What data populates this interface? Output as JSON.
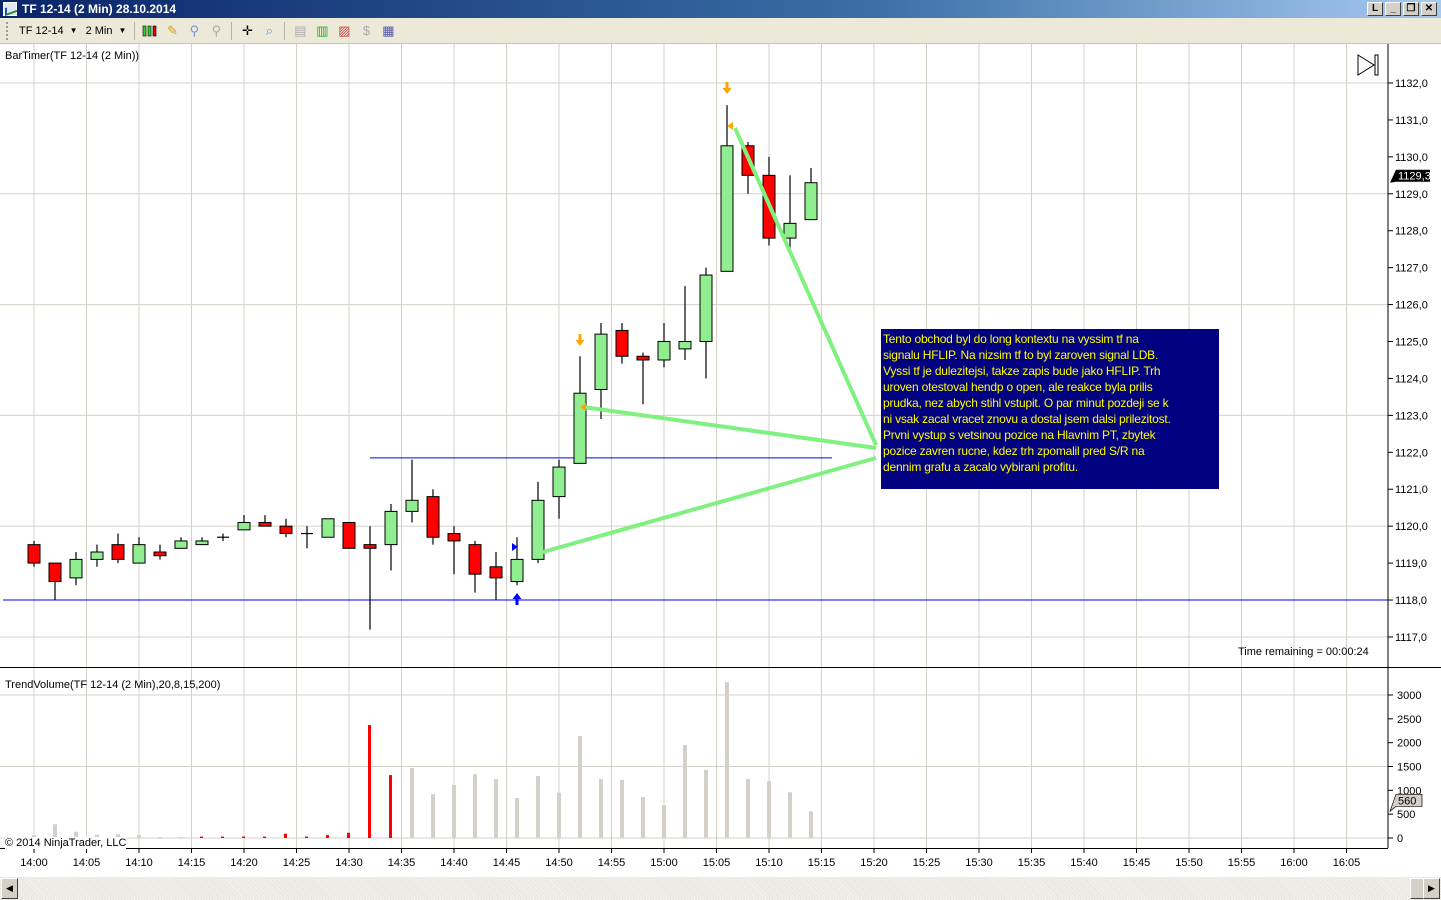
{
  "window": {
    "title": "TF 12-14 (2 Min)  28.10.2014",
    "buttons": [
      "L",
      "_",
      "❐",
      "✕"
    ]
  },
  "toolbar": {
    "instrument": "TF 12-14",
    "interval": "2 Min",
    "icons": [
      "candlestick-style-icon",
      "pencil-draw-icon",
      "zoom-in-icon",
      "zoom-out-icon",
      "crosshair-icon",
      "data-box-icon",
      "properties-icon",
      "indicators-icon",
      "strategies-icon",
      "market-analyzer-icon",
      "chart-template-icon"
    ]
  },
  "panels": {
    "price_label": "BarTimer(TF 12-14 (2 Min))",
    "volume_label": "TrendVolume(TF 12-14 (2 Min),20,8,15,200)",
    "time_remaining": "Time remaining = 00:00:24",
    "copyright": "© 2014 NinjaTrader, LLC"
  },
  "annotation": {
    "lines": [
      "Tento obchod byl do long kontextu na vyssim tf na",
      "signalu HFLIP. Na nizsim tf to byl zaroven signal LDB.",
      "Vyssi tf je dulezitejsi, takze zapis bude jako HFLIP. Trh",
      "uroven otestoval hendp o open, ale reakce byla prilis",
      "prudka, nez abych stihl vstupit. O par minut pozdeji se k",
      "ni vsak zacal vracet znovu a dostal jsem dalsi prilezitost.",
      "Prvni vystup s vetsinou pozice na Hlavnim PT, zbytek",
      "pozice zavren rucne, kdez trh zpomalil pred S/R na",
      "dennim grafu a zacalo vybirani profitu."
    ],
    "background": "#000080",
    "text_color": "#ffff00"
  },
  "chart_data": {
    "type": "candlestick",
    "interval_minutes": 2,
    "first_bar": "14:00",
    "colors": {
      "up": "#90ee90",
      "down": "#ff0000",
      "volume": "#d4d0c8",
      "volume_highlight": "#ff0000",
      "level_line": "#0000ff",
      "pointer_line": "#80f080",
      "signal_down": "#ffa500",
      "signal_up": "#0000ff"
    },
    "ohlc": [
      [
        1119.5,
        1119.6,
        1118.9,
        1119.0
      ],
      [
        1119.0,
        1119.0,
        1118.0,
        1118.5
      ],
      [
        1118.6,
        1119.3,
        1118.4,
        1119.1
      ],
      [
        1119.1,
        1119.5,
        1118.9,
        1119.3
      ],
      [
        1119.5,
        1119.8,
        1119.0,
        1119.1
      ],
      [
        1119.0,
        1119.7,
        1119.0,
        1119.5
      ],
      [
        1119.3,
        1119.5,
        1119.1,
        1119.2
      ],
      [
        1119.4,
        1119.7,
        1119.4,
        1119.6
      ],
      [
        1119.5,
        1119.7,
        1119.5,
        1119.6
      ],
      [
        1119.7,
        1119.8,
        1119.6,
        1119.7
      ],
      [
        1119.9,
        1120.3,
        1119.9,
        1120.1
      ],
      [
        1120.1,
        1120.3,
        1120.0,
        1120.0
      ],
      [
        1120.0,
        1120.2,
        1119.7,
        1119.8
      ],
      [
        1119.8,
        1120.0,
        1119.4,
        1119.8
      ],
      [
        1119.7,
        1120.2,
        1119.7,
        1120.2
      ],
      [
        1120.1,
        1120.1,
        1119.4,
        1119.4
      ],
      [
        1119.5,
        1120.0,
        1117.2,
        1119.4
      ],
      [
        1119.5,
        1120.6,
        1118.8,
        1120.4
      ],
      [
        1120.4,
        1121.8,
        1120.1,
        1120.7
      ],
      [
        1120.8,
        1121.0,
        1119.5,
        1119.7
      ],
      [
        1119.8,
        1120.0,
        1118.7,
        1119.6
      ],
      [
        1119.5,
        1119.6,
        1118.2,
        1118.7
      ],
      [
        1118.9,
        1119.3,
        1118.0,
        1118.6
      ],
      [
        1118.5,
        1119.7,
        1118.4,
        1119.1
      ],
      [
        1119.1,
        1121.2,
        1119.0,
        1120.7
      ],
      [
        1120.8,
        1121.8,
        1120.2,
        1121.6
      ],
      [
        1121.7,
        1124.6,
        1121.7,
        1123.6
      ],
      [
        1123.7,
        1125.5,
        1122.9,
        1125.2
      ],
      [
        1125.3,
        1125.5,
        1124.4,
        1124.6
      ],
      [
        1124.6,
        1124.7,
        1123.3,
        1124.5
      ],
      [
        1124.5,
        1125.5,
        1124.3,
        1125.0
      ],
      [
        1124.8,
        1126.5,
        1124.5,
        1125.0
      ],
      [
        1125.0,
        1127.0,
        1124.0,
        1126.8
      ],
      [
        1126.9,
        1131.4,
        1126.9,
        1130.3
      ],
      [
        1130.3,
        1130.4,
        1129.0,
        1129.5
      ],
      [
        1129.5,
        1130.0,
        1127.6,
        1127.8
      ],
      [
        1127.8,
        1129.5,
        1127.5,
        1128.2
      ],
      [
        1128.3,
        1129.7,
        1128.3,
        1129.3
      ]
    ],
    "volume": [
      60,
      290,
      130,
      70,
      80,
      60,
      20,
      20,
      30,
      30,
      30,
      30,
      90,
      30,
      60,
      110,
      2370,
      1320,
      1470,
      920,
      1110,
      1340,
      1240,
      840,
      1300,
      950,
      2140,
      1240,
      1220,
      860,
      690,
      1950,
      1430,
      3270,
      1240,
      1190,
      960,
      560
    ],
    "volume_highlight_bars": [
      8,
      9,
      10,
      11,
      12,
      13,
      14,
      15,
      16,
      17
    ],
    "price_axis": {
      "min": 1117,
      "max": 1132,
      "ticks": [
        "1132,0",
        "1131,0",
        "1130,0",
        "1129,0",
        "1128,0",
        "1127,0",
        "1126,0",
        "1125,0",
        "1124,0",
        "1123,0",
        "1122,0",
        "1121,0",
        "1120,0",
        "1119,0",
        "1118,0",
        "1117,0"
      ],
      "last_price": "1129,3"
    },
    "volume_axis": {
      "min": 0,
      "max": 3000,
      "ticks": [
        "3000",
        "2500",
        "2000",
        "1500",
        "1000",
        "500",
        "0"
      ],
      "last_value": "560"
    },
    "time_axis": [
      "14:00",
      "14:05",
      "14:10",
      "14:15",
      "14:20",
      "14:25",
      "14:30",
      "14:35",
      "14:40",
      "14:45",
      "14:50",
      "14:55",
      "15:00",
      "15:05",
      "15:10",
      "15:15",
      "15:20",
      "15:25",
      "15:30",
      "15:35",
      "15:40",
      "15:45",
      "15:50",
      "15:55",
      "16:00",
      "16:05"
    ],
    "horizontal_lines": [
      {
        "price": 1118.0,
        "from": "14:00"
      },
      {
        "price": 1121.85,
        "from": "14:32",
        "to": "15:18"
      }
    ],
    "signals": [
      {
        "bar": 33,
        "type": "down-arrow"
      },
      {
        "bar": 26,
        "type": "down-arrow"
      },
      {
        "bar": 23,
        "type": "up-arrow"
      },
      {
        "bar": 33,
        "type": "entry-marker"
      },
      {
        "bar": 26,
        "type": "entry-marker"
      },
      {
        "bar": 23,
        "type": "entry-marker-up"
      }
    ]
  }
}
